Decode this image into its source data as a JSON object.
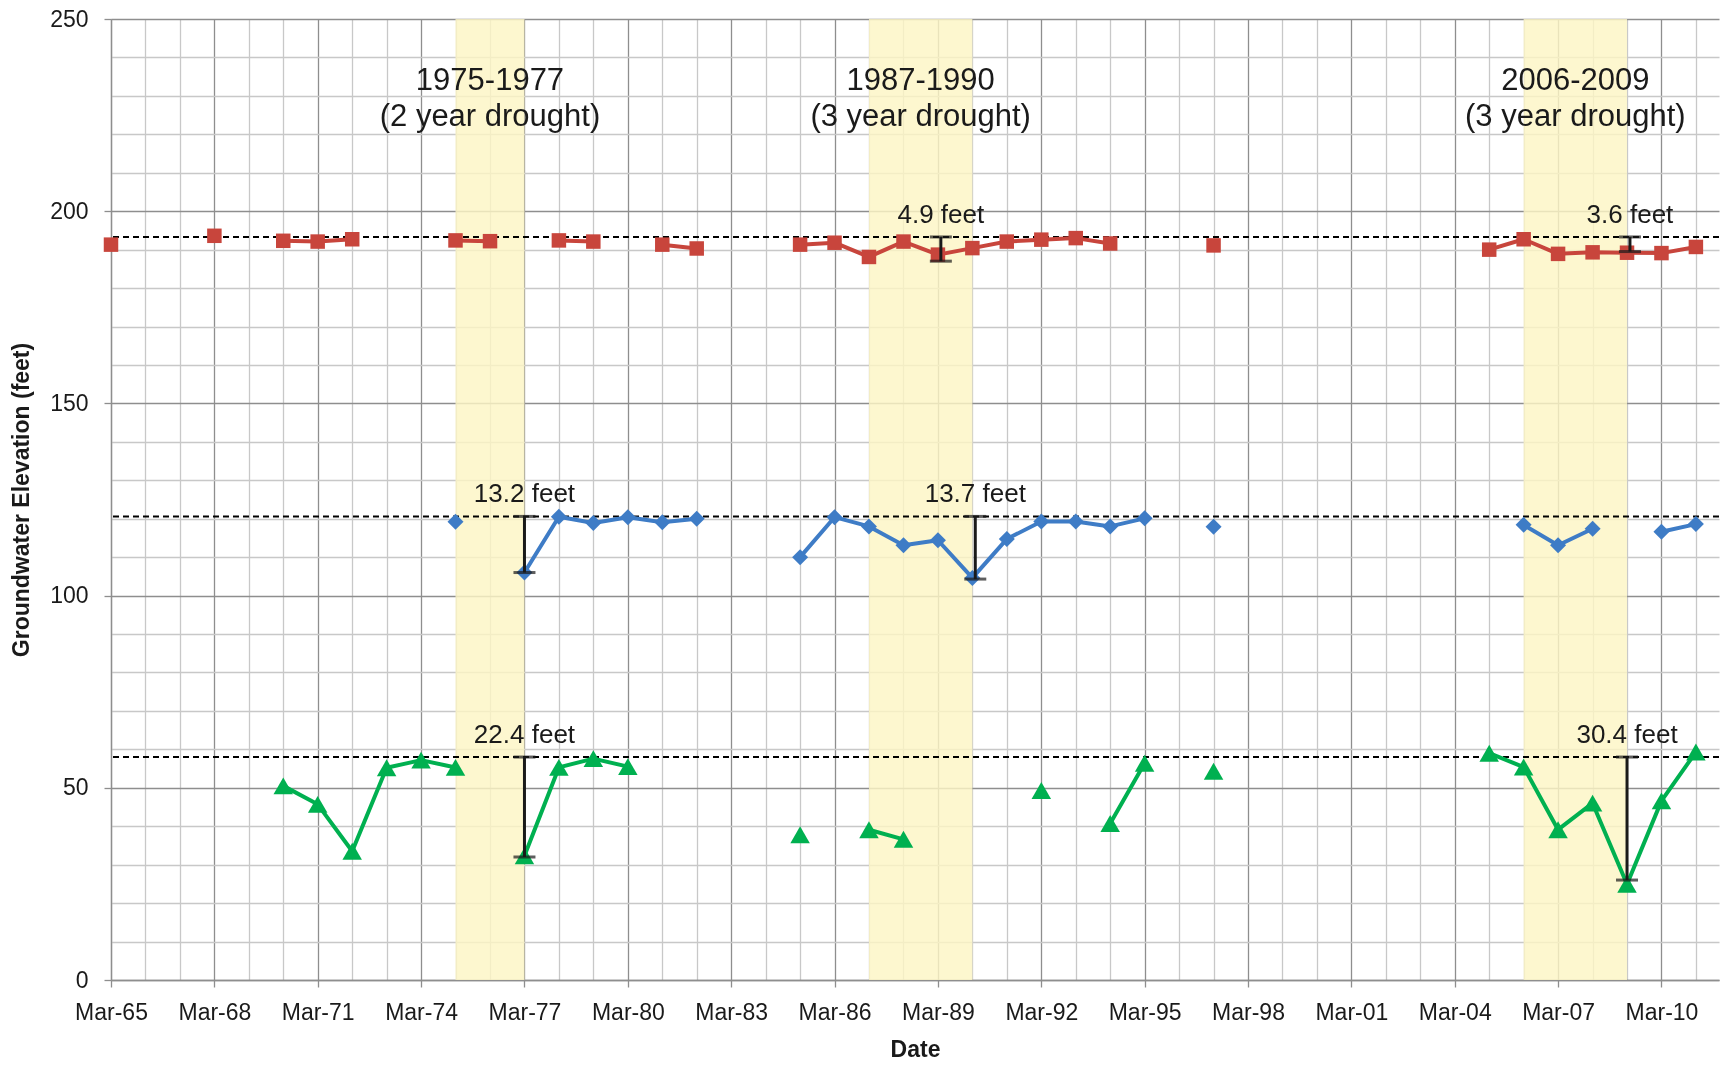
{
  "chart_data": {
    "type": "line",
    "xlabel": "Date",
    "ylabel": "Groundwater Elevation (feet)",
    "x": [
      "1965-03",
      "1966-03",
      "1967-03",
      "1968-03",
      "1969-03",
      "1970-03",
      "1971-03",
      "1972-03",
      "1973-03",
      "1974-03",
      "1975-03",
      "1976-03",
      "1977-03",
      "1978-03",
      "1979-03",
      "1980-03",
      "1981-03",
      "1982-03",
      "1983-03",
      "1984-03",
      "1985-03",
      "1986-03",
      "1987-03",
      "1988-03",
      "1989-03",
      "1990-03",
      "1991-03",
      "1992-03",
      "1993-03",
      "1994-03",
      "1995-03",
      "1996-03",
      "1997-03",
      "1998-03",
      "1999-03",
      "2000-03",
      "2001-03",
      "2002-03",
      "2003-03",
      "2004-03",
      "2005-03",
      "2006-03",
      "2007-03",
      "2008-03",
      "2009-03",
      "2010-03",
      "2011-03"
    ],
    "series": [
      {
        "color": "#c8453c",
        "marker": "square",
        "values": [
          191.3,
          null,
          null,
          193.6,
          null,
          192.3,
          192.1,
          192.7,
          null,
          null,
          192.4,
          192.2,
          null,
          192.4,
          192.1,
          null,
          191.3,
          190.3,
          null,
          null,
          191.3,
          191.8,
          188.1,
          192.1,
          188.7,
          190.4,
          192.1,
          192.6,
          193.0,
          191.6,
          null,
          null,
          191.1,
          null,
          null,
          null,
          null,
          null,
          null,
          null,
          190.0,
          192.7,
          188.9,
          189.3,
          189.2,
          189.1,
          190.7
        ]
      },
      {
        "color": "#3e7cc6",
        "marker": "diamond",
        "values": [
          null,
          null,
          null,
          null,
          null,
          null,
          null,
          null,
          null,
          null,
          119.2,
          null,
          106.0,
          120.5,
          118.9,
          120.4,
          119.1,
          120.0,
          null,
          null,
          110.0,
          120.4,
          118.0,
          113.1,
          114.4,
          104.6,
          114.7,
          119.3,
          119.3,
          118.0,
          120.1,
          null,
          117.9,
          null,
          null,
          null,
          null,
          null,
          null,
          null,
          null,
          118.4,
          113.1,
          117.4,
          null,
          116.6,
          118.6
        ]
      },
      {
        "color": "#00b050",
        "marker": "triangle",
        "values": [
          null,
          null,
          null,
          null,
          null,
          50.5,
          45.7,
          33.5,
          55.2,
          57.2,
          55.3,
          null,
          32.3,
          55.3,
          57.6,
          55.5,
          null,
          null,
          null,
          null,
          37.8,
          null,
          39.1,
          36.6,
          null,
          null,
          null,
          49.3,
          null,
          40.7,
          56.4,
          null,
          54.3,
          null,
          null,
          null,
          null,
          null,
          null,
          null,
          59.0,
          55.4,
          39.1,
          46.0,
          24.9,
          46.6,
          59.3
        ]
      }
    ],
    "xlim": [
      "1965-03",
      "2011-11"
    ],
    "xticks": [
      {
        "value": "1965-03",
        "label": "Mar-65"
      },
      {
        "value": "1966-03",
        "label": null
      },
      {
        "value": "1967-03",
        "label": null
      },
      {
        "value": "1968-03",
        "label": "Mar-68"
      },
      {
        "value": "1969-03",
        "label": null
      },
      {
        "value": "1970-03",
        "label": null
      },
      {
        "value": "1971-03",
        "label": "Mar-71"
      },
      {
        "value": "1972-03",
        "label": null
      },
      {
        "value": "1973-03",
        "label": null
      },
      {
        "value": "1974-03",
        "label": "Mar-74"
      },
      {
        "value": "1975-03",
        "label": null
      },
      {
        "value": "1976-03",
        "label": null
      },
      {
        "value": "1977-03",
        "label": "Mar-77"
      },
      {
        "value": "1978-03",
        "label": null
      },
      {
        "value": "1979-03",
        "label": null
      },
      {
        "value": "1980-03",
        "label": "Mar-80"
      },
      {
        "value": "1981-03",
        "label": null
      },
      {
        "value": "1982-03",
        "label": null
      },
      {
        "value": "1983-03",
        "label": "Mar-83"
      },
      {
        "value": "1984-03",
        "label": null
      },
      {
        "value": "1985-03",
        "label": null
      },
      {
        "value": "1986-03",
        "label": "Mar-86"
      },
      {
        "value": "1987-03",
        "label": null
      },
      {
        "value": "1988-03",
        "label": null
      },
      {
        "value": "1989-03",
        "label": "Mar-89"
      },
      {
        "value": "1990-03",
        "label": null
      },
      {
        "value": "1991-03",
        "label": null
      },
      {
        "value": "1992-03",
        "label": "Mar-92"
      },
      {
        "value": "1993-03",
        "label": null
      },
      {
        "value": "1994-03",
        "label": null
      },
      {
        "value": "1995-03",
        "label": "Mar-95"
      },
      {
        "value": "1996-03",
        "label": null
      },
      {
        "value": "1997-03",
        "label": null
      },
      {
        "value": "1998-03",
        "label": "Mar-98"
      },
      {
        "value": "1999-03",
        "label": null
      },
      {
        "value": "2000-03",
        "label": null
      },
      {
        "value": "2001-03",
        "label": "Mar-01"
      },
      {
        "value": "2002-03",
        "label": null
      },
      {
        "value": "2003-03",
        "label": null
      },
      {
        "value": "2004-03",
        "label": "Mar-04"
      },
      {
        "value": "2005-03",
        "label": null
      },
      {
        "value": "2006-03",
        "label": null
      },
      {
        "value": "2007-03",
        "label": "Mar-07"
      },
      {
        "value": "2008-03",
        "label": null
      },
      {
        "value": "2009-03",
        "label": null
      },
      {
        "value": "2010-03",
        "label": "Mar-10"
      },
      {
        "value": "2011-03",
        "label": null
      }
    ],
    "ylim": [
      0,
      250
    ],
    "yticks": [
      0,
      {
        "value": 10,
        "label": null
      },
      {
        "value": 20,
        "label": null
      },
      {
        "value": 30,
        "label": null
      },
      {
        "value": 40,
        "label": null
      },
      50,
      {
        "value": 60,
        "label": null
      },
      {
        "value": 70,
        "label": null
      },
      {
        "value": 80,
        "label": null
      },
      {
        "value": 90,
        "label": null
      },
      100,
      {
        "value": 110,
        "label": null
      },
      {
        "value": 120,
        "label": null
      },
      {
        "value": 130,
        "label": null
      },
      {
        "value": 140,
        "label": null
      },
      150,
      {
        "value": 160,
        "label": null
      },
      {
        "value": 170,
        "label": null
      },
      {
        "value": 180,
        "label": null
      },
      {
        "value": 190,
        "label": null
      },
      200,
      {
        "value": 210,
        "label": null
      },
      {
        "value": 220,
        "label": null
      },
      {
        "value": 230,
        "label": null
      },
      {
        "value": 240,
        "label": null
      },
      250
    ],
    "grid": true,
    "ref_lines": [
      {
        "axis": "y",
        "value": 193.3,
        "color": "#000000",
        "line_style": "dashed"
      },
      {
        "axis": "y",
        "value": 120.6,
        "color": "#000000",
        "line_style": "dashed"
      },
      {
        "axis": "y",
        "value": 58.0,
        "color": "#000000",
        "line_style": "dashed"
      }
    ],
    "bands": [
      {
        "axis": "x",
        "from": "1975-03",
        "to": "1977-03",
        "label": "1975-1977\n(2 year drought)",
        "color": "#fcf5c4"
      },
      {
        "axis": "x",
        "from": "1987-03",
        "to": "1990-03",
        "label": "1987-1990\n(3 year drought)",
        "color": "#fcf5c4"
      },
      {
        "axis": "x",
        "from": "2006-03",
        "to": "2009-03",
        "label": "2006-2009\n(3 year drought)",
        "color": "#fcf5c4"
      }
    ],
    "annotations": [
      {
        "text": "13.2 feet",
        "x": "1977-03",
        "y": 106.0
      },
      {
        "text": "4.9 feet",
        "x": "1989-04",
        "y": 187.0
      },
      {
        "text": "13.7 feet",
        "x": "1990-04",
        "y": 104.3
      },
      {
        "text": "22.4 feet",
        "x": "1977-03",
        "y": 32.0
      },
      {
        "text": "3.6 feet",
        "x": "2009-04",
        "y": 189.5
      },
      {
        "text": "30.4 feet",
        "x": "2009-03",
        "y": 26.0
      }
    ]
  }
}
